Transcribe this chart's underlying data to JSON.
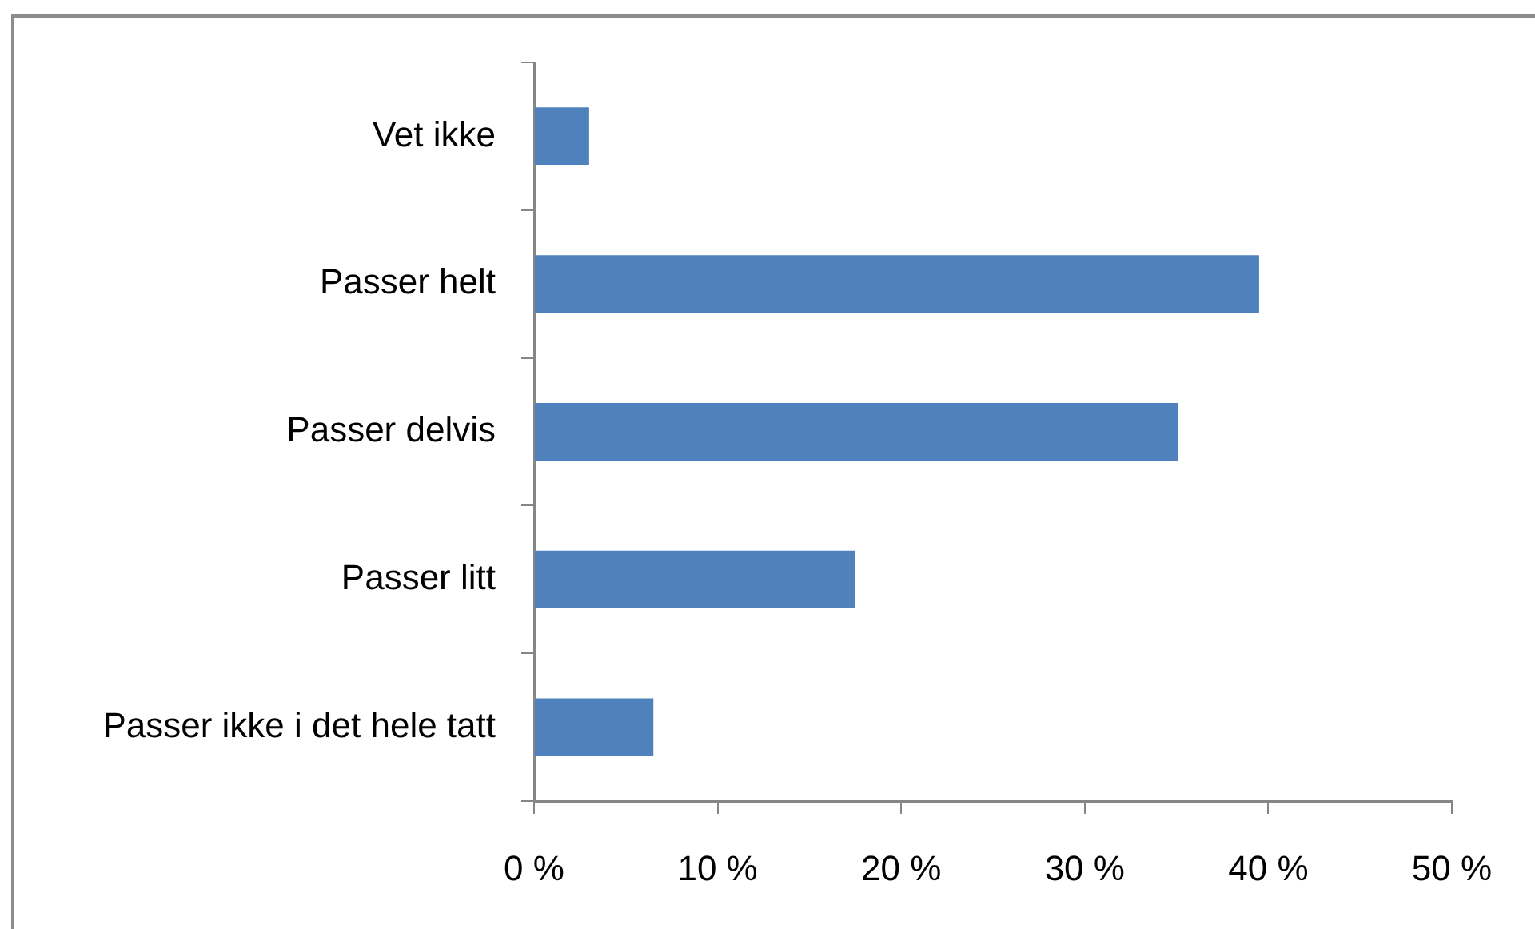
{
  "chart_data": {
    "type": "bar",
    "orientation": "horizontal",
    "categories": [
      "Vet ikke",
      "Passer helt",
      "Passer delvis",
      "Passer litt",
      "Passer ikke i det hele tatt"
    ],
    "values": [
      3.0,
      39.5,
      35.1,
      17.5,
      6.5
    ],
    "color": "#4f81bd",
    "xlim": [
      0,
      50
    ],
    "xticks": [
      {
        "value": 0,
        "label": "0 %"
      },
      {
        "value": 10,
        "label": "10 %"
      },
      {
        "value": 20,
        "label": "20 %"
      },
      {
        "value": 30,
        "label": "30 %"
      },
      {
        "value": 40,
        "label": "40 %"
      },
      {
        "value": 50,
        "label": "50 %"
      }
    ]
  }
}
